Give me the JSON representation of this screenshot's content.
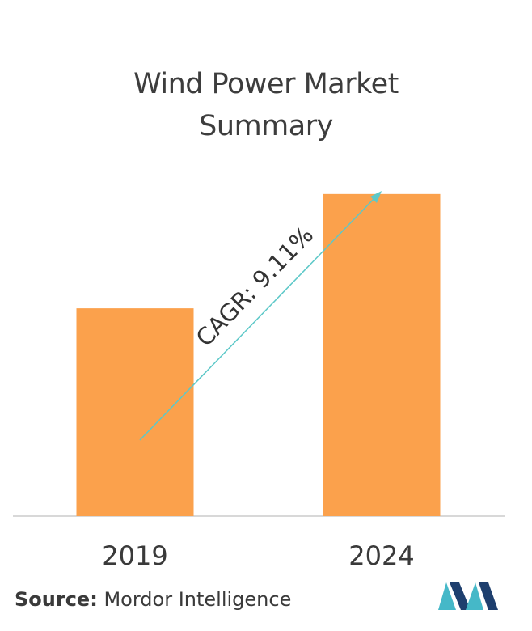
{
  "title_line1": "Wind Power Market",
  "title_line2": "Summary",
  "chart_data": {
    "type": "bar",
    "categories": [
      "2019",
      "2024"
    ],
    "values": [
      1.0,
      1.55
    ],
    "ylim": [
      0,
      1.6
    ],
    "bar_color": "#fba14c",
    "axis_color": "#cccccc",
    "annotation": {
      "text": "CAGR: 9.11%",
      "arrow_color": "#5cc8c8"
    }
  },
  "source_label": "Source:",
  "source_value": "Mordor Intelligence",
  "colors": {
    "logo_dark": "#1e3f6e",
    "logo_light": "#45b8c8"
  }
}
